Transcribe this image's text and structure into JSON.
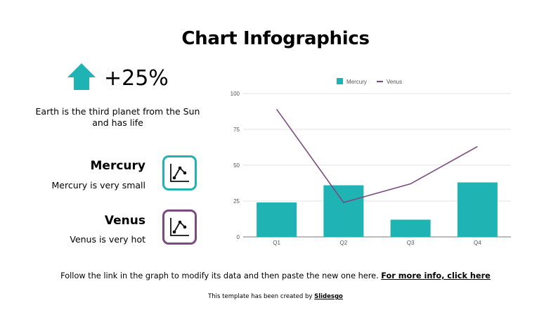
{
  "slide": {
    "title": "Chart Infographics",
    "stat": {
      "icon": "arrow-up-icon",
      "value": "+25%",
      "description": "Earth is the third planet from the Sun and has life"
    },
    "items": [
      {
        "title": "Mercury",
        "description": "Mercury is very small",
        "icon": "line-chart-icon",
        "border_color": "#1fb3b3"
      },
      {
        "title": "Venus",
        "description": "Venus is very hot",
        "icon": "line-chart-icon",
        "border_color": "#7a4a80"
      }
    ],
    "footer": {
      "text": "Follow the link in the graph to modify its data and then paste the new one here. ",
      "link": "For more info, click here"
    },
    "credit": {
      "text": "This template has been created by ",
      "link": "Slidesgo"
    }
  },
  "colors": {
    "accent_teal": "#1fb3b3",
    "accent_purple": "#7a4a80",
    "grid": "#e0e0e0",
    "axis_text": "#555555"
  },
  "chart_data": {
    "type": "bar",
    "title": "",
    "categories": [
      "Q1",
      "Q2",
      "Q3",
      "Q4"
    ],
    "series": [
      {
        "name": "Mercury",
        "type": "bar",
        "color": "#1fb3b3",
        "values": [
          24,
          36,
          12,
          38
        ]
      },
      {
        "name": "Venus",
        "type": "line",
        "color": "#7a4a80",
        "values": [
          89,
          24,
          37,
          63
        ]
      }
    ],
    "yticks": [
      0,
      25,
      50,
      75,
      100
    ],
    "ylim": [
      0,
      100
    ],
    "xlabel": "",
    "ylabel": "",
    "grid": true,
    "legend_position": "top"
  }
}
